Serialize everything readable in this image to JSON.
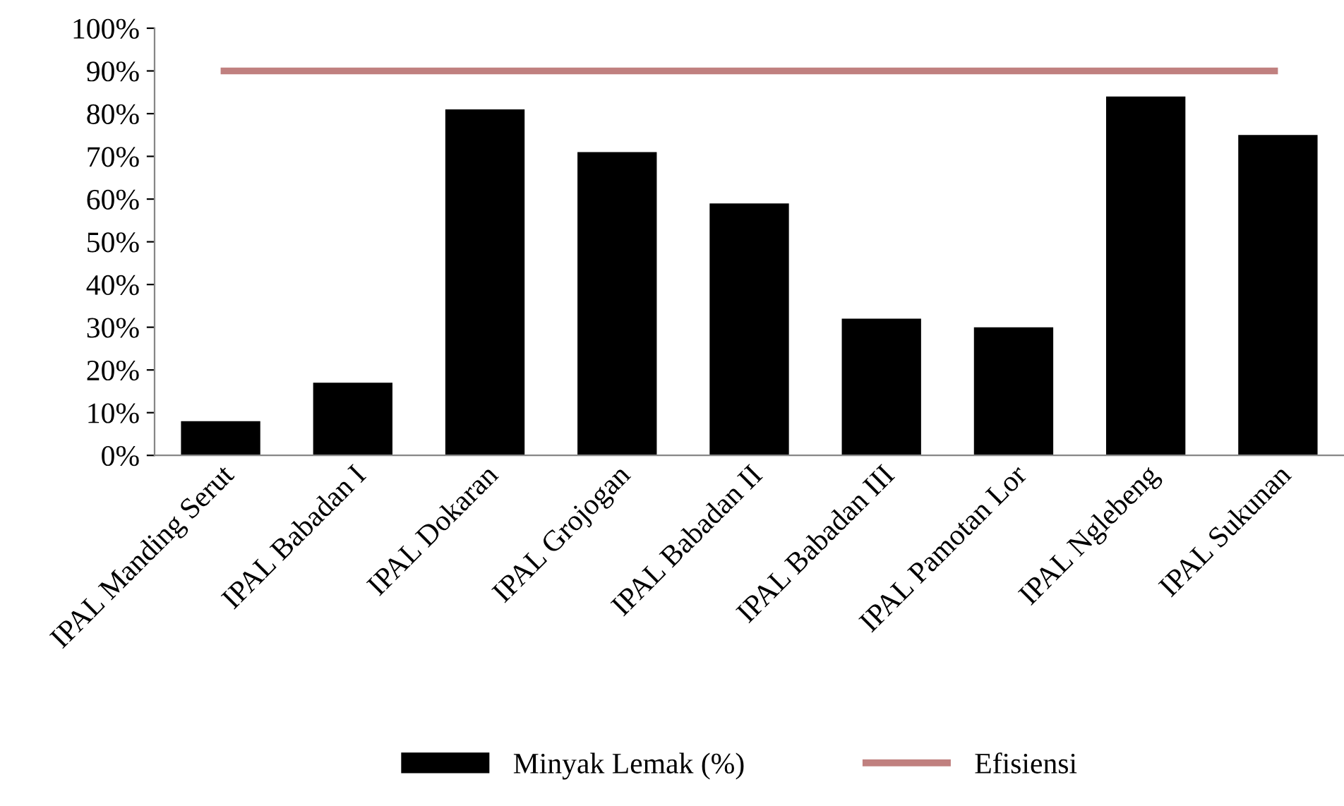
{
  "chart_data": {
    "type": "bar",
    "categories": [
      "IPAL Manding Serut",
      "IPAL Babadan I",
      "IPAL Dokaran",
      "IPAL Grojogan",
      "IPAL Babadan II",
      "IPAL Babadan III",
      "IPAL Pamotan Lor",
      "IPAL Nglebeng",
      "IPAL Sukunan"
    ],
    "series": [
      {
        "name": "Minyak Lemak (%)",
        "color": "#000000",
        "values": [
          8,
          17,
          81,
          71,
          59,
          32,
          30,
          84,
          75
        ]
      },
      {
        "name": "Efisiensi",
        "type": "line",
        "color": "#c0807f",
        "values": [
          90,
          90,
          90,
          90,
          90,
          90,
          90,
          90,
          90
        ]
      }
    ],
    "ylim": [
      0,
      100
    ],
    "yticks": [
      {
        "value": 0,
        "label": "0%"
      },
      {
        "value": 10,
        "label": "10%"
      },
      {
        "value": 20,
        "label": "20%"
      },
      {
        "value": 30,
        "label": "30%"
      },
      {
        "value": 40,
        "label": "40%"
      },
      {
        "value": 50,
        "label": "50%"
      },
      {
        "value": 60,
        "label": "60%"
      },
      {
        "value": 70,
        "label": "70%"
      },
      {
        "value": 80,
        "label": "80%"
      },
      {
        "value": 90,
        "label": "90%"
      },
      {
        "value": 100,
        "label": "100%"
      }
    ],
    "grid": false,
    "legend": "bottom",
    "marker": "none"
  }
}
